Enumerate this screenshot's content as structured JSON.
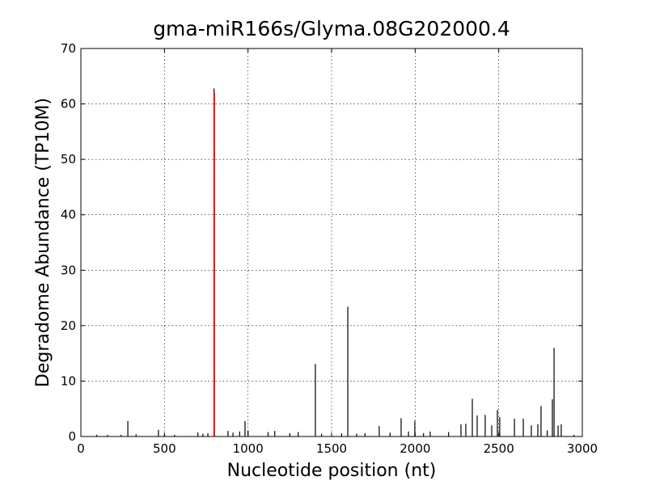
{
  "chart_data": {
    "type": "stem",
    "title": "gma-miR166s/Glyma.08G202000.4",
    "x_label": "Nucleotide position (nt)",
    "y_label": "Degradome Abundance (TP10M)",
    "xlim": [
      0,
      3000
    ],
    "ylim": [
      0,
      70
    ],
    "xticks": [
      0,
      500,
      1000,
      1500,
      2000,
      2500,
      3000
    ],
    "yticks": [
      0,
      10,
      20,
      30,
      40,
      50,
      60,
      70
    ],
    "grid": true,
    "series": [
      {
        "color": "#000000",
        "x": [
          95,
          160,
          240,
          281,
          330,
          464,
          500,
          560,
          700,
          730,
          760,
          797,
          880,
          910,
          950,
          982,
          1000,
          1120,
          1160,
          1250,
          1300,
          1403,
          1440,
          1560,
          1597,
          1650,
          1700,
          1785,
          1850,
          1916,
          1960,
          1998,
          2050,
          2090,
          2200,
          2274,
          2303,
          2342,
          2371,
          2419,
          2458,
          2492,
          2506,
          2594,
          2647,
          2695,
          2734,
          2753,
          2790,
          2821,
          2831,
          2855,
          2874,
          2950
        ],
        "values": [
          0.3,
          0.3,
          0.3,
          2.8,
          0.4,
          1.2,
          0.4,
          0.3,
          0.7,
          0.5,
          0.6,
          62.8,
          1.0,
          0.7,
          0.9,
          2.8,
          1.1,
          0.8,
          1.0,
          0.6,
          0.8,
          13.1,
          0.5,
          0.6,
          23.4,
          0.5,
          0.6,
          1.9,
          0.7,
          3.3,
          0.9,
          2.8,
          0.6,
          0.9,
          0.8,
          2.2,
          2.3,
          6.8,
          3.8,
          3.9,
          2.0,
          4.8,
          3.5,
          3.2,
          3.2,
          2.0,
          2.2,
          5.5,
          1.1,
          6.7,
          16,
          2.0,
          2.2,
          0.3
        ]
      },
      {
        "color": "#ff0000",
        "x": [
          798
        ],
        "values": [
          62
        ]
      }
    ]
  }
}
